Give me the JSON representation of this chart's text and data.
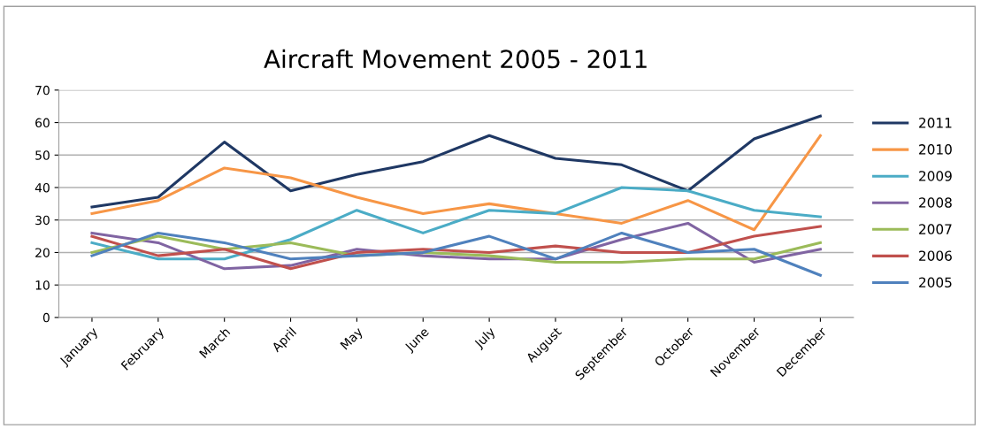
{
  "chart_data": {
    "type": "line",
    "title": "Aircraft Movement 2005 - 2011",
    "categories": [
      "January",
      "February",
      "March",
      "April",
      "May",
      "June",
      "July",
      "August",
      "September",
      "October",
      "November",
      "December"
    ],
    "series": [
      {
        "name": "2011",
        "color": "#1f3864",
        "values": [
          34,
          37,
          54,
          39,
          44,
          48,
          56,
          49,
          47,
          39,
          55,
          62
        ]
      },
      {
        "name": "2010",
        "color": "#f79646",
        "values": [
          32,
          36,
          46,
          43,
          37,
          32,
          35,
          32,
          29,
          36,
          27,
          56
        ]
      },
      {
        "name": "2009",
        "color": "#4bacc6",
        "values": [
          23,
          18,
          18,
          24,
          33,
          26,
          33,
          32,
          40,
          39,
          33,
          31
        ]
      },
      {
        "name": "2008",
        "color": "#8064a2",
        "values": [
          26,
          23,
          15,
          16,
          21,
          19,
          18,
          18,
          24,
          29,
          17,
          21
        ]
      },
      {
        "name": "2007",
        "color": "#9bbb59",
        "values": [
          20,
          25,
          21,
          23,
          19,
          20,
          19,
          17,
          17,
          18,
          18,
          23
        ]
      },
      {
        "name": "2006",
        "color": "#c0504d",
        "values": [
          25,
          19,
          21,
          15,
          20,
          21,
          20,
          22,
          20,
          20,
          25,
          28
        ]
      },
      {
        "name": "2005",
        "color": "#4f81bd",
        "values": [
          19,
          26,
          23,
          18,
          19,
          20,
          25,
          18,
          26,
          20,
          21,
          13
        ]
      }
    ],
    "ylim": [
      0,
      70
    ],
    "yticks": [
      0,
      10,
      20,
      30,
      40,
      50,
      60,
      70
    ],
    "grid": "y",
    "legend": "right",
    "marker": "none",
    "line_style": "solid"
  }
}
